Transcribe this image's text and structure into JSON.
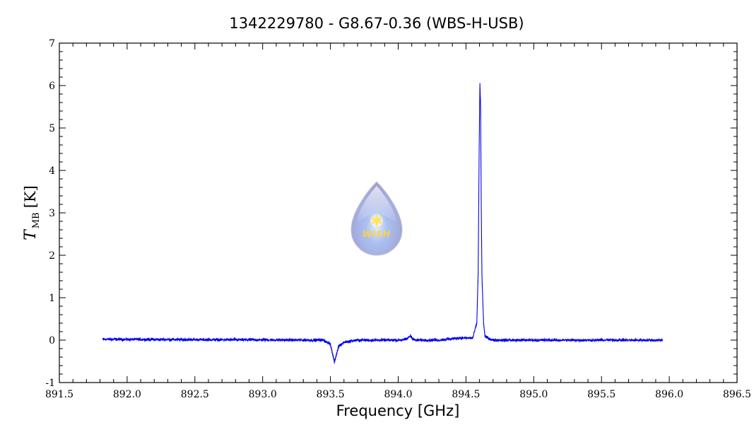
{
  "chart_data": {
    "type": "line",
    "title": "1342229780 - G8.67-0.36 (WBS-H-USB)",
    "xlabel": "Frequency [GHz]",
    "ylabel": {
      "symbol": "T",
      "subscript": "MB",
      "unit": "[K]"
    },
    "xlim": [
      891.5,
      896.5
    ],
    "ylim": [
      -1,
      7
    ],
    "x_ticks": [
      "891.5",
      "892.0",
      "892.5",
      "893.0",
      "893.5",
      "894.0",
      "894.5",
      "895.0",
      "895.5",
      "896.0",
      "896.5"
    ],
    "y_ticks": [
      "-1",
      "0",
      "1",
      "2",
      "3",
      "4",
      "5",
      "6",
      "7"
    ],
    "grid": false,
    "line_color": "#0000ee",
    "series": [
      {
        "x": [
          891.82,
          893.45,
          893.5,
          893.53,
          893.56,
          893.6,
          893.7,
          894.0,
          894.06,
          894.09,
          894.12,
          894.3,
          894.45,
          894.48,
          894.55,
          894.58,
          894.59,
          894.598,
          894.603,
          894.608,
          894.613,
          894.618,
          894.624,
          894.63,
          894.64,
          894.66,
          894.7,
          895.0,
          895.95
        ],
        "y": [
          0.02,
          0.0,
          -0.1,
          -0.52,
          -0.15,
          -0.05,
          0.0,
          0.0,
          0.02,
          0.1,
          0.0,
          0.0,
          0.05,
          0.05,
          0.05,
          0.4,
          1.6,
          4.7,
          6.05,
          5.5,
          3.1,
          1.5,
          0.95,
          0.4,
          0.1,
          0.05,
          0.0,
          0.0,
          0.0
        ]
      }
    ]
  },
  "watermark": {
    "text": "WISH"
  }
}
